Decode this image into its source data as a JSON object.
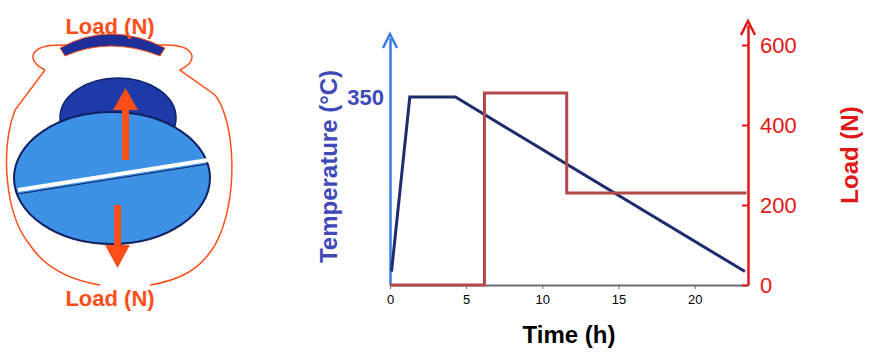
{
  "chart_data": {
    "type": "line",
    "x_label": "Time (h)",
    "y_label": "Temperature (°C)",
    "y2_label": "Load (N)",
    "annotations": [
      "Load (N)",
      "Load (N)"
    ],
    "xlim": [
      0,
      23.5
    ],
    "xticks": [
      0,
      5,
      10,
      15,
      20
    ],
    "ylim": [
      0,
      460
    ],
    "yticks": [
      350
    ],
    "y2lim": [
      0,
      650
    ],
    "y2ticks": [
      0,
      200,
      400,
      600
    ],
    "grid": false,
    "series": [
      {
        "x": [
          0.1,
          1.3,
          4.3,
          23.3
        ],
        "values": [
          25,
          350,
          350,
          25
        ],
        "color": "#1f2d6e",
        "line_style": "solid"
      },
      {
        "x": [
          0,
          6.2,
          6.2,
          11.6,
          11.6,
          23.4
        ],
        "values": [
          0,
          0,
          480,
          480,
          230,
          230
        ],
        "color": "#b5484a",
        "axis": "y2",
        "line_style": "solid"
      }
    ]
  }
}
